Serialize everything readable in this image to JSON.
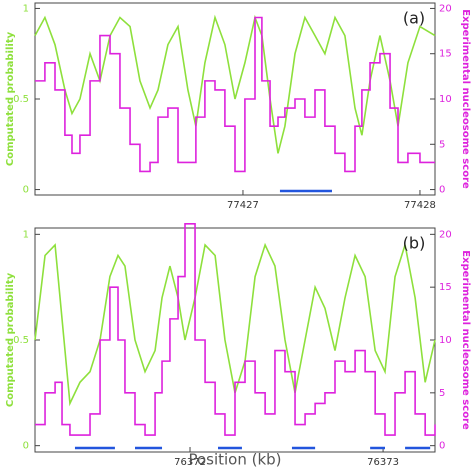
{
  "chart_data": [
    {
      "type": "line",
      "panel_label": "(a)",
      "ylabel": "Computated probability",
      "y2label": "Experimental nucleosome score",
      "x": [
        77425.825,
        77425.881,
        77425.938,
        77425.994,
        77426.034,
        77426.079,
        77426.136,
        77426.192,
        77426.249,
        77426.305,
        77426.362,
        77426.418,
        77426.475,
        77426.52,
        77426.576,
        77426.633,
        77426.689,
        77426.734,
        77426.785,
        77426.842,
        77426.898,
        77426.955,
        77427.011,
        77427.068,
        77427.107,
        77427.153,
        77427.198,
        77427.237,
        77427.294,
        77427.35,
        77427.407,
        77427.463,
        77427.52,
        77427.576,
        77427.633,
        77427.672,
        77427.718,
        77427.774,
        77427.831,
        77427.876,
        77427.932,
        77428.0,
        77428.085
      ],
      "series": [
        {
          "color": "#8ee03c",
          "values": [
            0.85,
            0.95,
            0.8,
            0.55,
            0.42,
            0.5,
            0.75,
            0.6,
            0.85,
            0.95,
            0.9,
            0.6,
            0.45,
            0.55,
            0.8,
            0.9,
            0.55,
            0.35,
            0.7,
            0.95,
            0.8,
            0.5,
            0.7,
            0.95,
            0.85,
            0.5,
            0.2,
            0.35,
            0.75,
            0.95,
            0.85,
            0.75,
            0.95,
            0.85,
            0.45,
            0.3,
            0.6,
            0.85,
            0.6,
            0.35,
            0.7,
            0.9,
            0.85
          ]
        },
        {
          "color": "#dd22dd",
          "axis": "y2",
          "step": true,
          "values": [
            12,
            14,
            11,
            6,
            4,
            6,
            12,
            17,
            15,
            9,
            5,
            2,
            3,
            8,
            9,
            3,
            3,
            8,
            12,
            11,
            7,
            2,
            10,
            19,
            12,
            7,
            8,
            9,
            10,
            8,
            11,
            7,
            4,
            2,
            7,
            11,
            14,
            15,
            9,
            3,
            4,
            3,
            3
          ]
        }
      ],
      "segments": [
        {
          "start": 77427.209,
          "end": 77427.503
        }
      ],
      "segment_color": "#2255dd",
      "xlim": [
        77425.825,
        77428.085
      ],
      "xticks": [
        77427,
        77428
      ],
      "ylim": [
        -0.03,
        1.03
      ],
      "yticks": [
        0,
        0.5,
        1
      ],
      "y2lim": [
        -0.6,
        20.6
      ],
      "y2ticks": [
        0,
        5,
        10,
        15,
        20
      ]
    },
    {
      "type": "line",
      "panel_label": "(b)",
      "ylabel": "Computated probability",
      "y2label": "Experimental nucleosome score",
      "xlabel": "Position (kb)",
      "x": [
        76371.197,
        76371.249,
        76371.301,
        76371.337,
        76371.378,
        76371.43,
        76371.482,
        76371.534,
        76371.585,
        76371.627,
        76371.663,
        76371.715,
        76371.767,
        76371.819,
        76371.855,
        76371.896,
        76371.938,
        76371.974,
        76372.026,
        76372.078,
        76372.13,
        76372.181,
        76372.233,
        76372.285,
        76372.337,
        76372.389,
        76372.44,
        76372.492,
        76372.544,
        76372.596,
        76372.648,
        76372.699,
        76372.751,
        76372.803,
        76372.855,
        76372.907,
        76372.959,
        76373.01,
        76373.062,
        76373.114,
        76373.166,
        76373.218,
        76373.269
      ],
      "series": [
        {
          "color": "#8ee03c",
          "values": [
            0.5,
            0.9,
            0.95,
            0.6,
            0.2,
            0.3,
            0.35,
            0.5,
            0.8,
            0.9,
            0.85,
            0.5,
            0.35,
            0.45,
            0.7,
            0.85,
            0.7,
            0.5,
            0.7,
            0.95,
            0.9,
            0.5,
            0.25,
            0.4,
            0.8,
            0.95,
            0.85,
            0.5,
            0.25,
            0.5,
            0.75,
            0.65,
            0.45,
            0.7,
            0.9,
            0.8,
            0.45,
            0.35,
            0.8,
            0.95,
            0.7,
            0.3,
            0.5
          ]
        },
        {
          "color": "#dd22dd",
          "axis": "y2",
          "step": true,
          "values": [
            2,
            5,
            6,
            2,
            1,
            1,
            3,
            10,
            15,
            10,
            5,
            2,
            1,
            5,
            8,
            12,
            16,
            21,
            10,
            6,
            3,
            1,
            6,
            8,
            5,
            3,
            9,
            7,
            2,
            3,
            4,
            5,
            8,
            7,
            9,
            7,
            3,
            1,
            5,
            7,
            3,
            1,
            2
          ]
        }
      ],
      "segments": [
        {
          "start": 76371.404,
          "end": 76371.611
        },
        {
          "start": 76371.715,
          "end": 76371.855
        },
        {
          "start": 76372.145,
          "end": 76372.269
        },
        {
          "start": 76372.528,
          "end": 76372.648
        },
        {
          "start": 76372.933,
          "end": 76373.01
        },
        {
          "start": 76373.114,
          "end": 76373.244
        }
      ],
      "segment_color": "#2255dd",
      "xlim": [
        76371.197,
        76373.269
      ],
      "xticks": [
        76372,
        76373
      ],
      "ylim": [
        -0.03,
        1.03
      ],
      "yticks": [
        0,
        0.5,
        1
      ],
      "y2lim": [
        -0.6,
        20.6
      ],
      "y2ticks": [
        0,
        5,
        10,
        15,
        20
      ]
    }
  ]
}
